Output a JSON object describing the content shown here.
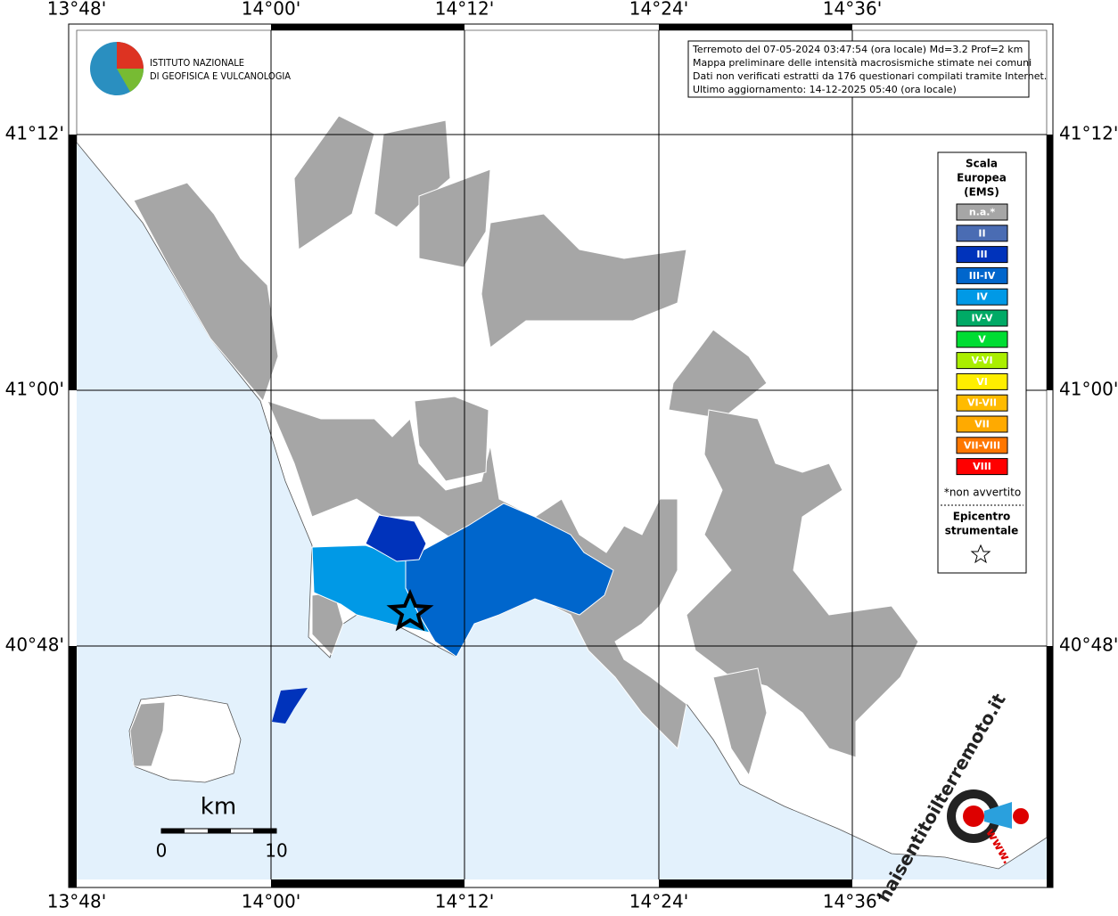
{
  "header": {
    "institute": [
      "ISTITUTO NAZIONALE",
      "DI GEOFISICA E VULCANOLOGIA"
    ]
  },
  "info": [
    "Terremoto del 07-05-2024 03:47:54 (ora locale) Md=3.2 Prof=2 km",
    "Mappa preliminare delle intensità macrosismiche stimate nei comuni",
    "Dati non verificati estratti da 176 questionari compilati tramite Internet.",
    "Ultimo aggiornamento: 14-12-2025 05:40 (ora locale)"
  ],
  "longitudes": [
    "13°48'",
    "14°00'",
    "14°12'",
    "14°24'",
    "14°36'"
  ],
  "latitudes": [
    "41°12'",
    "41°00'",
    "40°48'"
  ],
  "legend": {
    "title": [
      "Scala",
      "Europea",
      "(EMS)"
    ],
    "items": [
      {
        "label": "n.a.*",
        "color": "#a6a6a6"
      },
      {
        "label": "II",
        "color": "#4a6cb3"
      },
      {
        "label": "III",
        "color": "#0033bb"
      },
      {
        "label": "III-IV",
        "color": "#0066cc"
      },
      {
        "label": "IV",
        "color": "#0099e6"
      },
      {
        "label": "IV-V",
        "color": "#00aa66"
      },
      {
        "label": "V",
        "color": "#00dd33"
      },
      {
        "label": "V-VI",
        "color": "#aaee00"
      },
      {
        "label": "VI",
        "color": "#ffee00"
      },
      {
        "label": "VI-VII",
        "color": "#ffbb00"
      },
      {
        "label": "VII",
        "color": "#ffaa00"
      },
      {
        "label": "VII-VIII",
        "color": "#ff7700"
      },
      {
        "label": "VIII",
        "color": "#ff0000"
      }
    ],
    "note": "*non avvertito",
    "epicenter_title": [
      "Epicentro",
      "strumentale"
    ]
  },
  "scale": {
    "unit": "km",
    "labels": [
      "0",
      "10"
    ]
  },
  "watermark": {
    "prefix": "www.",
    "site": "haisentitoilterremoto.it"
  }
}
